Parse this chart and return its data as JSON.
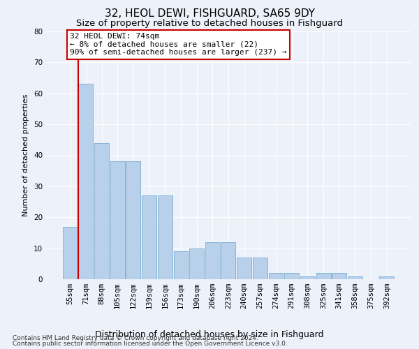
{
  "title": "32, HEOL DEWI, FISHGUARD, SA65 9DY",
  "subtitle": "Size of property relative to detached houses in Fishguard",
  "xlabel": "Distribution of detached houses by size in Fishguard",
  "ylabel": "Number of detached properties",
  "categories": [
    "55sqm",
    "71sqm",
    "88sqm",
    "105sqm",
    "122sqm",
    "139sqm",
    "156sqm",
    "173sqm",
    "190sqm",
    "206sqm",
    "223sqm",
    "240sqm",
    "257sqm",
    "274sqm",
    "291sqm",
    "308sqm",
    "325sqm",
    "341sqm",
    "358sqm",
    "375sqm",
    "392sqm"
  ],
  "values": [
    17,
    63,
    44,
    38,
    38,
    27,
    27,
    9,
    10,
    12,
    12,
    7,
    7,
    2,
    2,
    1,
    2,
    2,
    1,
    0,
    1
  ],
  "bar_color": "#b8d0ea",
  "bar_edge_color": "#7aadd4",
  "highlight_color": "#cc0000",
  "red_line_bar_index": 1,
  "annotation_title": "32 HEOL DEWI: 74sqm",
  "annotation_line1": "← 8% of detached houses are smaller (22)",
  "annotation_line2": "90% of semi-detached houses are larger (237) →",
  "annotation_box_facecolor": "#ffffff",
  "annotation_box_edgecolor": "#cc0000",
  "ylim": [
    0,
    80
  ],
  "yticks": [
    0,
    10,
    20,
    30,
    40,
    50,
    60,
    70,
    80
  ],
  "background_color": "#edf1f9",
  "grid_color": "#ffffff",
  "title_fontsize": 11,
  "subtitle_fontsize": 9.5,
  "xlabel_fontsize": 9,
  "ylabel_fontsize": 8,
  "tick_fontsize": 7.5,
  "annotation_fontsize": 8,
  "footer_fontsize": 6.5,
  "footer_line1": "Contains HM Land Registry data © Crown copyright and database right 2024.",
  "footer_line2": "Contains public sector information licensed under the Open Government Licence v3.0."
}
